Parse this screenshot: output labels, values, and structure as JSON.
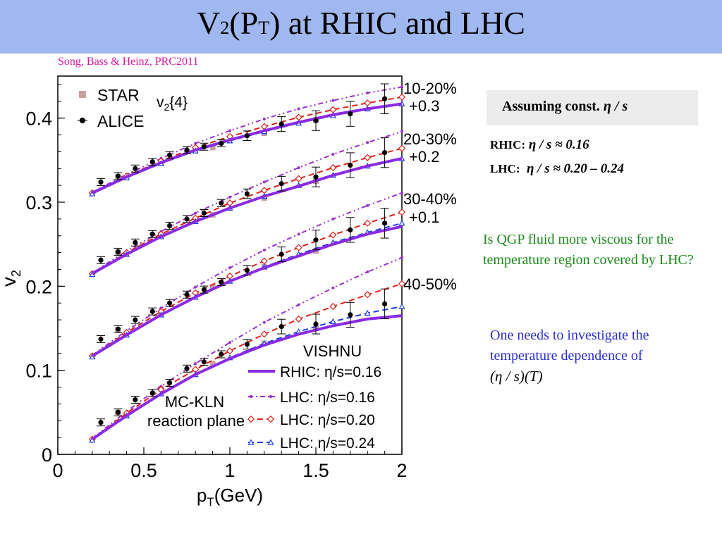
{
  "slide": {
    "title_main": "V",
    "title_sub": "2",
    "title_mid": "(P",
    "title_sub2": "T",
    "title_rest": ") at RHIC and LHC",
    "citation": "Song,  Bass & Heinz, PRC2011"
  },
  "sidebar": {
    "box_label": "Assuming const.",
    "box_formula": "η / s",
    "rhic_label": "RHIC:",
    "rhic_value": "η / s ≈ 0.16",
    "lhc_label": "LHC:",
    "lhc_value": "η / s ≈ 0.20 – 0.24",
    "question": "Is QGP fluid more viscous for the temperature region covered by LHC?",
    "statement": "One needs to investigate the temperature dependence of",
    "statement_formula": "(η / s)(T)"
  },
  "colors": {
    "title_bg": "#9fb8ef",
    "citation": "#d6189c",
    "question": "#1a8a1a",
    "statement": "#2b2fd0",
    "rhic": "#8a2be2",
    "lhc016": "#9b30d0",
    "lhc020": "#e0201a",
    "lhc024": "#1a3de0",
    "star": "#c8a0a0",
    "alice": "#000000"
  },
  "chart_data": {
    "type": "line",
    "xlabel": "pT(GeV)",
    "ylabel": "v2",
    "xlim": [
      0,
      2
    ],
    "ylim": [
      0,
      0.45
    ],
    "xticks": [
      "0",
      "0.5",
      "1",
      "1.5",
      "2"
    ],
    "yticks": [
      "0",
      "0.1",
      "0.2",
      "0.3",
      "0.4"
    ],
    "inner_label": "v2{4}",
    "model_label": "VISHNU",
    "model_sublabel": [
      "MC-KLN",
      "reaction plane"
    ],
    "legend_top": [
      {
        "name": "STAR",
        "marker": "square"
      },
      {
        "name": "ALICE",
        "marker": "circle"
      }
    ],
    "legend_bottom": [
      {
        "name": "RHIC: η/s=0.16",
        "style": "solid"
      },
      {
        "name": "LHC: η/s=0.16",
        "style": "dashdot"
      },
      {
        "name": "LHC: η/s=0.20",
        "style": "dash"
      },
      {
        "name": "LHC: η/s=0.24",
        "style": "dash"
      }
    ],
    "groups": [
      {
        "label": "10-20%",
        "offset_label": "+0.3",
        "x": [
          0.2,
          0.4,
          0.6,
          0.8,
          1.0,
          1.2,
          1.4,
          1.6,
          1.8,
          2.0
        ],
        "rhic": [
          0.311,
          0.33,
          0.347,
          0.362,
          0.374,
          0.385,
          0.395,
          0.404,
          0.411,
          0.417
        ],
        "lhc016": [
          0.312,
          0.333,
          0.352,
          0.37,
          0.385,
          0.399,
          0.411,
          0.421,
          0.43,
          0.437
        ],
        "lhc020": [
          0.311,
          0.331,
          0.349,
          0.365,
          0.378,
          0.39,
          0.401,
          0.41,
          0.418,
          0.425
        ],
        "lhc024": [
          0.31,
          0.329,
          0.346,
          0.361,
          0.373,
          0.384,
          0.394,
          0.403,
          0.411,
          0.417
        ],
        "alice_x": [
          0.25,
          0.35,
          0.45,
          0.55,
          0.65,
          0.75,
          0.85,
          0.95,
          1.1,
          1.3,
          1.5,
          1.7,
          1.9
        ],
        "alice_y": [
          0.324,
          0.331,
          0.34,
          0.348,
          0.356,
          0.362,
          0.366,
          0.37,
          0.379,
          0.393,
          0.397,
          0.405,
          0.423
        ],
        "star_x": [
          0.35,
          0.6,
          0.9,
          1.2,
          1.5
        ],
        "star_y": [
          0.33,
          0.348,
          0.365,
          0.382,
          0.398
        ]
      },
      {
        "label": "20-30%",
        "offset_label": "+0.2",
        "x": [
          0.2,
          0.4,
          0.6,
          0.8,
          1.0,
          1.2,
          1.4,
          1.6,
          1.8,
          2.0
        ],
        "rhic": [
          0.215,
          0.238,
          0.259,
          0.277,
          0.293,
          0.307,
          0.319,
          0.332,
          0.343,
          0.352
        ],
        "lhc016": [
          0.216,
          0.242,
          0.265,
          0.287,
          0.306,
          0.324,
          0.341,
          0.357,
          0.371,
          0.384
        ],
        "lhc020": [
          0.215,
          0.24,
          0.262,
          0.281,
          0.299,
          0.314,
          0.328,
          0.341,
          0.353,
          0.364
        ],
        "lhc024": [
          0.214,
          0.238,
          0.259,
          0.277,
          0.293,
          0.307,
          0.32,
          0.332,
          0.343,
          0.352
        ],
        "alice_x": [
          0.25,
          0.35,
          0.45,
          0.55,
          0.65,
          0.75,
          0.85,
          0.95,
          1.1,
          1.3,
          1.5,
          1.7,
          1.9
        ],
        "alice_y": [
          0.231,
          0.241,
          0.252,
          0.262,
          0.272,
          0.28,
          0.287,
          0.299,
          0.31,
          0.322,
          0.33,
          0.344,
          0.359
        ],
        "star_x": [
          0.35,
          0.6,
          0.9,
          1.2,
          1.5
        ],
        "star_y": [
          0.24,
          0.26,
          0.285,
          0.305,
          0.325
        ]
      },
      {
        "label": "30-40%",
        "offset_label": "+0.1",
        "x": [
          0.2,
          0.4,
          0.6,
          0.8,
          1.0,
          1.2,
          1.4,
          1.6,
          1.8,
          2.0
        ],
        "rhic": [
          0.117,
          0.142,
          0.166,
          0.187,
          0.206,
          0.222,
          0.236,
          0.25,
          0.262,
          0.271
        ],
        "lhc016": [
          0.118,
          0.147,
          0.174,
          0.199,
          0.222,
          0.243,
          0.262,
          0.28,
          0.296,
          0.311
        ],
        "lhc020": [
          0.117,
          0.145,
          0.17,
          0.192,
          0.212,
          0.23,
          0.246,
          0.261,
          0.275,
          0.288
        ],
        "lhc024": [
          0.116,
          0.142,
          0.166,
          0.187,
          0.206,
          0.223,
          0.238,
          0.252,
          0.264,
          0.275
        ],
        "alice_x": [
          0.25,
          0.35,
          0.45,
          0.55,
          0.65,
          0.75,
          0.85,
          0.95,
          1.1,
          1.3,
          1.5,
          1.7,
          1.9
        ],
        "alice_y": [
          0.137,
          0.149,
          0.16,
          0.17,
          0.18,
          0.19,
          0.196,
          0.205,
          0.219,
          0.238,
          0.255,
          0.267,
          0.275
        ],
        "star_x": [
          0.35,
          0.6,
          0.9,
          1.2,
          1.5
        ],
        "star_y": [
          0.148,
          0.168,
          0.199,
          0.223,
          0.242
        ]
      },
      {
        "label": "40-50%",
        "offset_label": "",
        "x": [
          0.2,
          0.4,
          0.6,
          0.8,
          1.0,
          1.2,
          1.4,
          1.6,
          1.8,
          2.0
        ],
        "rhic": [
          0.018,
          0.046,
          0.072,
          0.095,
          0.114,
          0.13,
          0.143,
          0.153,
          0.161,
          0.165
        ],
        "lhc016": [
          0.019,
          0.051,
          0.081,
          0.108,
          0.133,
          0.157,
          0.178,
          0.198,
          0.217,
          0.234
        ],
        "lhc020": [
          0.018,
          0.049,
          0.077,
          0.101,
          0.123,
          0.143,
          0.161,
          0.176,
          0.19,
          0.203
        ],
        "lhc024": [
          0.017,
          0.046,
          0.072,
          0.095,
          0.115,
          0.132,
          0.146,
          0.158,
          0.168,
          0.176
        ],
        "alice_x": [
          0.25,
          0.35,
          0.45,
          0.55,
          0.65,
          0.75,
          0.85,
          0.95,
          1.1,
          1.3,
          1.5,
          1.7,
          1.9
        ],
        "alice_y": [
          0.038,
          0.05,
          0.065,
          0.073,
          0.085,
          0.102,
          0.11,
          0.119,
          0.131,
          0.152,
          0.155,
          0.166,
          0.179
        ],
        "star_x": [
          0.35,
          0.6,
          0.9,
          1.2,
          1.5
        ],
        "star_y": [
          0.05,
          0.078,
          0.108,
          0.132,
          0.15
        ]
      }
    ]
  }
}
